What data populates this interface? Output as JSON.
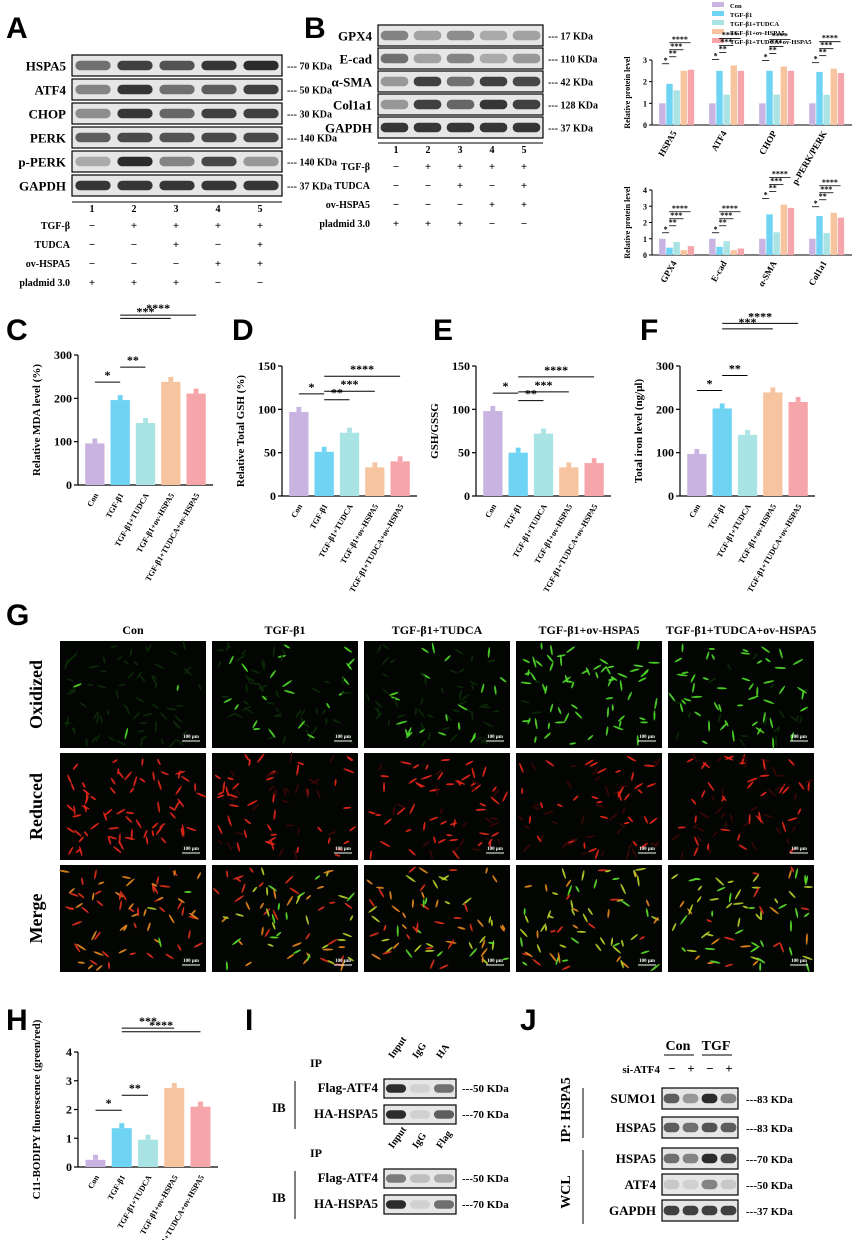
{
  "colors": {
    "con": "#c9b3e0",
    "tgf": "#6fd3f3",
    "tgf_tudca": "#a9e3e3",
    "tgf_ov": "#f7c4a0",
    "tgf_tudca_ov": "#f6a6aa"
  },
  "groups": [
    "Con",
    "TGF-β1",
    "TGF-β1+TUDCA",
    "TGF-β1+ov-HSPA5",
    "TGF-β1+TUDCA+ov-HSPA5"
  ],
  "panel_letters": [
    "A",
    "B",
    "C",
    "D",
    "E",
    "F",
    "G",
    "H",
    "I",
    "J"
  ],
  "panelA": {
    "proteins": [
      "HSPA5",
      "ATF4",
      "CHOP",
      "PERK",
      "p-PERK",
      "GAPDH"
    ],
    "sizes": [
      "--- 70 KDa",
      "--- 50 KDa",
      "--- 30 KDa",
      "--- 140 KDa",
      "--- 140 KDa",
      "--- 37 KDa"
    ],
    "lanes": [
      "1",
      "2",
      "3",
      "4",
      "5"
    ],
    "conditions": [
      {
        "name": "TGF-β",
        "marks": [
          "−",
          "+",
          "+",
          "+",
          "+"
        ]
      },
      {
        "name": "TUDCA",
        "marks": [
          "−",
          "−",
          "+",
          "−",
          "+"
        ]
      },
      {
        "name": "ov-HSPA5",
        "marks": [
          "−",
          "−",
          "−",
          "+",
          "+"
        ]
      },
      {
        "name": "pladmid 3.0",
        "marks": [
          "+",
          "+",
          "+",
          "−",
          "−"
        ]
      }
    ]
  },
  "panelB": {
    "proteins": [
      "GPX4",
      "E-cad",
      "α-SMA",
      "Col1a1",
      "GAPDH"
    ],
    "sizes": [
      "--- 17 KDa",
      "--- 110 KDa",
      "--- 42 KDa",
      "--- 128 KDa",
      "--- 37 KDa"
    ],
    "lanes": [
      "1",
      "2",
      "3",
      "4",
      "5"
    ],
    "conditions": [
      {
        "name": "TGF-β",
        "marks": [
          "−",
          "+",
          "+",
          "+",
          "+"
        ]
      },
      {
        "name": "TUDCA",
        "marks": [
          "−",
          "−",
          "+",
          "−",
          "+"
        ]
      },
      {
        "name": "ov-HSPA5",
        "marks": [
          "−",
          "−",
          "−",
          "+",
          "+"
        ]
      },
      {
        "name": "pladmid 3.0",
        "marks": [
          "+",
          "+",
          "+",
          "−",
          "−"
        ]
      }
    ],
    "legend": [
      "Con",
      "TGF-β1",
      "TGF-β1+TUDCA",
      "TGF-β1+ov-HSPA5",
      "TGF-β1+TUDCA+ov-HSPA5"
    ]
  },
  "chart_data": [
    {
      "panel": "B-top",
      "type": "bar",
      "ylabel": "Relative protein level",
      "categories": [
        "HSPA5",
        "ATF4",
        "CHOP",
        "p-PERK/PERK"
      ],
      "series": [
        {
          "name": "Con",
          "values": [
            1.0,
            1.0,
            1.0,
            1.0
          ]
        },
        {
          "name": "TGF-β1",
          "values": [
            1.9,
            2.5,
            2.5,
            2.45
          ]
        },
        {
          "name": "TGF-β1+TUDCA",
          "values": [
            1.6,
            1.4,
            1.4,
            1.4
          ]
        },
        {
          "name": "TGF-β1+ov-HSPA5",
          "values": [
            2.5,
            2.75,
            2.7,
            2.6
          ]
        },
        {
          "name": "TGF-β1+TUDCA+ov-HSPA5",
          "values": [
            2.55,
            2.5,
            2.5,
            2.4
          ]
        }
      ],
      "sig": [
        "*",
        "**",
        "***",
        "****"
      ]
    },
    {
      "panel": "B-bottom",
      "type": "bar",
      "ylabel": "Relative protein level",
      "categories": [
        "GPX4",
        "E-cad",
        "α-SMA",
        "Col1a1"
      ],
      "series": [
        {
          "name": "Con",
          "values": [
            1.0,
            1.0,
            1.0,
            1.0
          ]
        },
        {
          "name": "TGF-β1",
          "values": [
            0.45,
            0.5,
            2.5,
            2.4
          ]
        },
        {
          "name": "TGF-β1+TUDCA",
          "values": [
            0.8,
            0.85,
            1.4,
            1.35
          ]
        },
        {
          "name": "TGF-β1+ov-HSPA5",
          "values": [
            0.3,
            0.3,
            3.1,
            2.6
          ]
        },
        {
          "name": "TGF-β1+TUDCA+ov-HSPA5",
          "values": [
            0.55,
            0.4,
            2.9,
            2.3
          ]
        }
      ],
      "sig": [
        "*",
        "**",
        "***",
        "****"
      ]
    },
    {
      "panel": "C",
      "type": "bar",
      "ylabel": "Relative MDA level (%)",
      "categories": [
        "Con",
        "TGF-β1",
        "TGF-β1+TUDCA",
        "TGF-β1+ov-HSPA5",
        "TGF-β1+TUDCA+ov-HSPA5"
      ],
      "values": [
        96,
        196,
        143,
        238,
        211
      ],
      "ylim": [
        0,
        300
      ],
      "yticks": [
        "0",
        "100",
        "200",
        "300"
      ],
      "sig": [
        "*",
        "**",
        "***",
        "****"
      ]
    },
    {
      "panel": "D",
      "type": "bar",
      "ylabel": "Relative Total GSH (%)",
      "categories": [
        "Con",
        "TGF-β1",
        "TGF-β1+TUDCA",
        "TGF-β1+ov-HSPA5",
        "TGF-β1+TUDCA+ov-HSPA5"
      ],
      "values": [
        97,
        51,
        73,
        33,
        40
      ],
      "ylim": [
        0,
        150
      ],
      "yticks": [
        "0",
        "50",
        "100",
        "150"
      ],
      "sig": [
        "*",
        "**",
        "***",
        "****"
      ]
    },
    {
      "panel": "E",
      "type": "bar",
      "ylabel": "GSH/GSSG",
      "categories": [
        "Con",
        "TGF-β1",
        "TGF-β1+TUDCA",
        "TGF-β1+ov-HSPA5",
        "TGF-β1+TUDCA+ov-HSPA5"
      ],
      "values": [
        98,
        50,
        72,
        33,
        38
      ],
      "ylim": [
        0,
        150
      ],
      "yticks": [
        "0",
        "50",
        "100",
        "150"
      ],
      "sig": [
        "*",
        "**",
        "***",
        "****"
      ]
    },
    {
      "panel": "F",
      "type": "bar",
      "ylabel": "Total iron level (ng/μl)",
      "categories": [
        "Con",
        "TGF-β1",
        "TGF-β1+TUDCA",
        "TGF-β1+ov-HSPA5",
        "TGF-β1+TUDCA+ov-HSPA5"
      ],
      "values": [
        97,
        202,
        141,
        239,
        217
      ],
      "ylim": [
        0,
        300
      ],
      "yticks": [
        "0",
        "100",
        "200",
        "300"
      ],
      "sig": [
        "*",
        "**",
        "***",
        "****"
      ]
    },
    {
      "panel": "H",
      "type": "bar",
      "ylabel": "C11-BODIPY fluorescence (green/red)",
      "categories": [
        "Con",
        "TGF-β1",
        "TGF-β1+TUDCA",
        "TGF-β1+ov-HSPA5",
        "TGF-β1+TUDCA+ov-HSPA5"
      ],
      "values": [
        0.25,
        1.35,
        0.95,
        2.75,
        2.1
      ],
      "ylim": [
        0,
        4
      ],
      "yticks": [
        "0",
        "1",
        "2",
        "3",
        "4"
      ],
      "sig": [
        "*",
        "**",
        "***",
        "****"
      ]
    }
  ],
  "panelG": {
    "columns": [
      "Con",
      "TGF-β1",
      "TGF-β1+TUDCA",
      "TGF-β1+ov-HSPA5",
      "TGF-β1+TUDCA+ov-HSPA5"
    ],
    "rows": [
      "Oxidized",
      "Reduced",
      "Merge"
    ],
    "scale": "100 μm"
  },
  "panelI": {
    "ip1": "IP",
    "ib1": "IB",
    "lanes1": [
      "Input",
      "IgG",
      "HA"
    ],
    "blots1": [
      "Flag-ATF4",
      "HA-HSPA5"
    ],
    "sizes1": [
      "---50 KDa",
      "---70 KDa"
    ],
    "ip2": "IP",
    "ib2": "IB",
    "lanes2": [
      "Input",
      "IgG",
      "Flag"
    ],
    "blots2": [
      "Flag-ATF4",
      "HA-HSPA5"
    ],
    "sizes2": [
      "---50 KDa",
      "---70 KDa"
    ]
  },
  "panelJ": {
    "con": "Con",
    "tgf": "TGF",
    "si": "si-ATF4",
    "marks": [
      "−",
      "+",
      "−",
      "+"
    ],
    "ip_label": "IP: HSPA5",
    "wcl_label": "WCL",
    "ip_blots": [
      "SUMO1",
      "HSPA5"
    ],
    "ip_sizes": [
      "---83 KDa",
      "---83 KDa"
    ],
    "wcl_blots": [
      "HSPA5",
      "ATF4",
      "GAPDH"
    ],
    "wcl_sizes": [
      "---70 KDa",
      "---50 KDa",
      "---37 KDa"
    ]
  }
}
